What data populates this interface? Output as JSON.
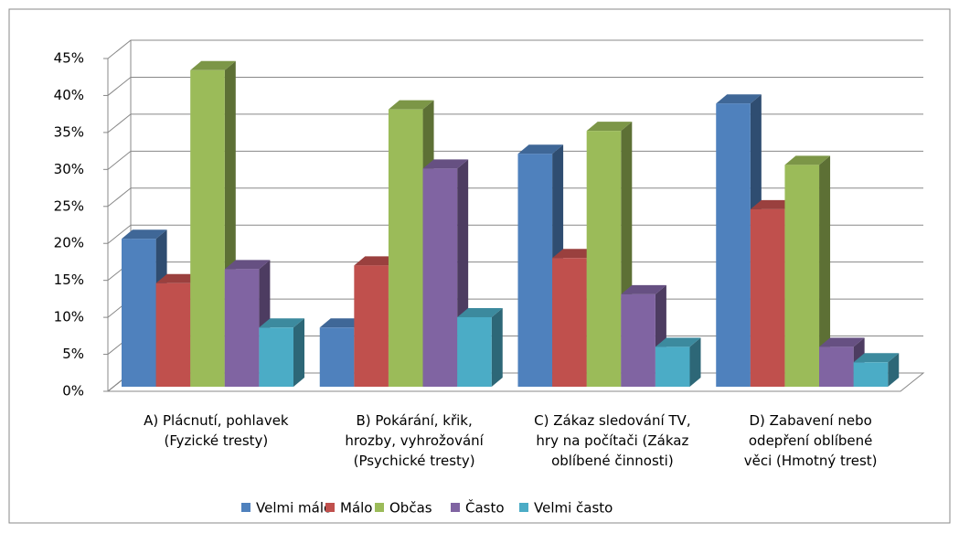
{
  "chart_data": {
    "type": "bar3d",
    "categories": [
      [
        "A) Plácnutí, pohlavek",
        "(Fyzické tresty)"
      ],
      [
        "B) Pokárání, křik,",
        "hrozby, vyhrožování",
        "(Psychické tresty)"
      ],
      [
        "C) Zákaz sledování TV,",
        "hry na počítači (Zákaz",
        "oblíbené činnosti)"
      ],
      [
        "D) Zabavení nebo",
        "odepření oblíbené",
        "věci (Hmotný trest)"
      ]
    ],
    "series": [
      {
        "name": "Velmi málo",
        "color": "#4f81bd",
        "values": [
          20,
          8,
          31.5,
          38.3
        ]
      },
      {
        "name": "Málo",
        "color": "#c0504d",
        "values": [
          14,
          16.4,
          17.4,
          24
        ]
      },
      {
        "name": "Občas",
        "color": "#9bbb59",
        "values": [
          42.8,
          37.5,
          34.6,
          30
        ]
      },
      {
        "name": "Často",
        "color": "#8064a2",
        "values": [
          15.9,
          29.5,
          12.5,
          5.4
        ]
      },
      {
        "name": "Velmi často",
        "color": "#4bacc6",
        "values": [
          8,
          9.4,
          5.4,
          3.3
        ]
      }
    ],
    "ylim": [
      0,
      45
    ],
    "yticks": [
      {
        "value": 0,
        "label": "0%"
      },
      {
        "value": 5,
        "label": "5%"
      },
      {
        "value": 10,
        "label": "10%"
      },
      {
        "value": 15,
        "label": "15%"
      },
      {
        "value": 20,
        "label": "20%"
      },
      {
        "value": 25,
        "label": "25%"
      },
      {
        "value": 30,
        "label": "30%"
      },
      {
        "value": 35,
        "label": "35%"
      },
      {
        "value": 40,
        "label": "40%"
      },
      {
        "value": 45,
        "label": "45%"
      }
    ],
    "grid": true,
    "legend": "bottom"
  }
}
